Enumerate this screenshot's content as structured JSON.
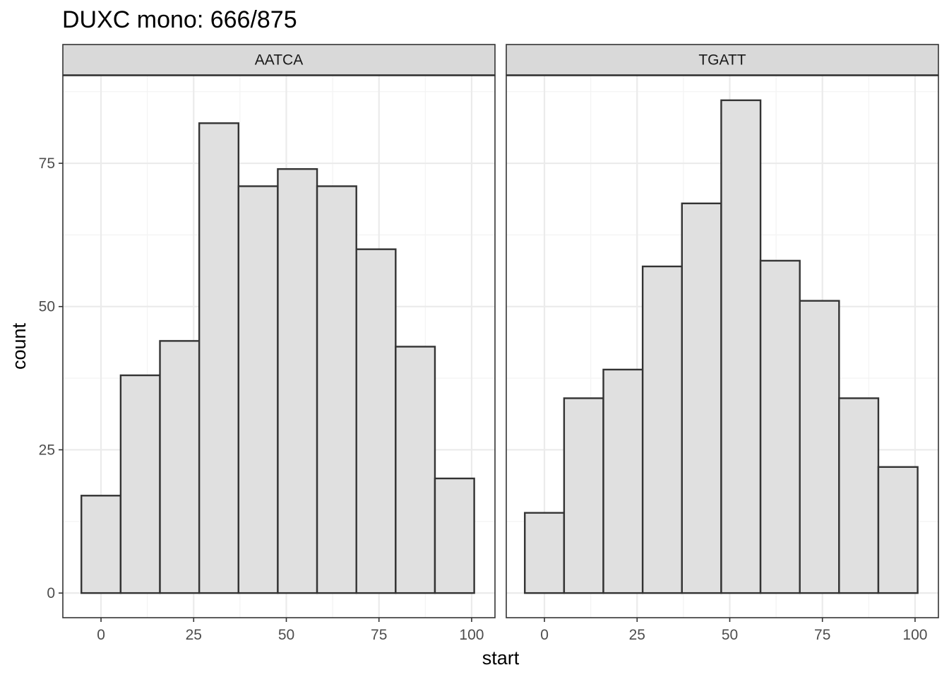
{
  "chart_data": {
    "type": "bar",
    "title": "DUXC mono: 666/875",
    "xlabel": "start",
    "ylabel": "count",
    "xlim": [
      -10.3,
      106.3
    ],
    "ylim": [
      -4.3,
      90.3
    ],
    "x_ticks": [
      0,
      25,
      50,
      75,
      100
    ],
    "y_ticks": [
      0,
      25,
      50,
      75
    ],
    "grid": true,
    "bin_edges": [
      -5.3,
      5.3,
      15.9,
      26.5,
      37.1,
      47.7,
      58.3,
      68.9,
      79.5,
      90.1,
      100.7
    ],
    "panels": [
      {
        "label": "AATCA",
        "values": [
          17,
          38,
          44,
          82,
          71,
          74,
          71,
          60,
          43,
          20
        ]
      },
      {
        "label": "TGATT",
        "values": [
          14,
          34,
          39,
          57,
          68,
          86,
          58,
          51,
          34,
          22
        ]
      }
    ],
    "colors": {
      "bar_fill": "#e0e0e0",
      "bar_stroke": "#333333",
      "grid_major": "#ebebeb",
      "grid_minor": "#f3f3f3",
      "panel_border": "#333333",
      "strip_fill": "#d9d9d9",
      "tick_text": "#4d4d4d"
    }
  }
}
